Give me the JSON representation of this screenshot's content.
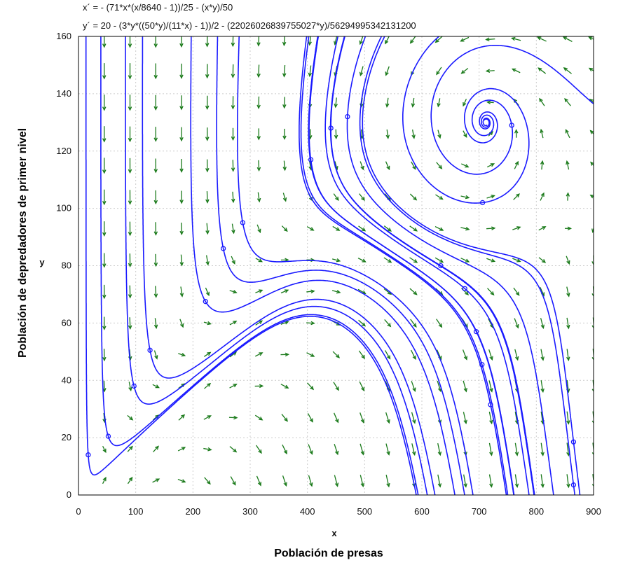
{
  "equations": {
    "xprime": "x´ = - (71*x*(x/8640 - 1))/25 - (x*y)/50",
    "yprime": "y´ = 20 - (3*y*((50*y)/(11*x) - 1))/2 - (22026026839755027*y)/56294995342131200"
  },
  "chart_data": {
    "type": "phase-portrait",
    "xlabel": "x",
    "ylabel": "y",
    "xlabel_long": "Población de presas",
    "ylabel_long": "Población de depredadores de primer nivel",
    "xlim": [
      0,
      900
    ],
    "ylim": [
      0,
      160
    ],
    "xticks": [
      0,
      100,
      200,
      300,
      400,
      500,
      600,
      700,
      800,
      900
    ],
    "yticks": [
      0,
      20,
      40,
      60,
      80,
      100,
      120,
      140,
      160
    ],
    "grid": true,
    "equilibrium": [
      712,
      130
    ],
    "colors": {
      "trajectory": "#1a1aff",
      "field": "#1a7a1a",
      "grid": "#cccccc"
    },
    "initial_points": [
      [
        17,
        14
      ],
      [
        52,
        20.5
      ],
      [
        97,
        38
      ],
      [
        125,
        50.5
      ],
      [
        222,
        67.5
      ],
      [
        253,
        86
      ],
      [
        287,
        95
      ],
      [
        406,
        117
      ],
      [
        441,
        128
      ],
      [
        470,
        132
      ],
      [
        757,
        129
      ],
      [
        706,
        102
      ],
      [
        633,
        80
      ],
      [
        675,
        72
      ],
      [
        695,
        57
      ],
      [
        705,
        45.5
      ],
      [
        720,
        31.5
      ],
      [
        865,
        18.5
      ],
      [
        865,
        3.5
      ]
    ]
  }
}
